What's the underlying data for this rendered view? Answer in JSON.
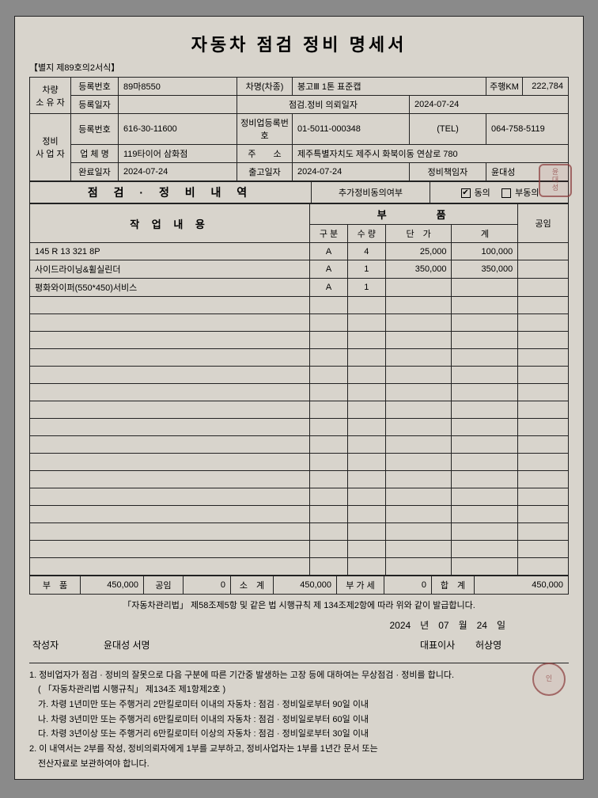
{
  "title": "자동차 점검 정비 명세서",
  "formNo": "【별지 제89호의2서식】",
  "owner": {
    "group": "차량\n소 유 자",
    "regNoLabel": "등록번호",
    "regNo": "89마8550",
    "regDateLabel": "등록일자",
    "regDate": "",
    "carModelLabel": "차명(차종)",
    "carModel": "봉고Ⅲ 1톤 표준캡",
    "mileageLabel": "주행KM",
    "mileage": "222,784",
    "reqDateLabel": "점검.정비 의뢰일자",
    "reqDate": "2024-07-24"
  },
  "shop": {
    "group": "정비\n사 업 자",
    "regNoLabel": "등록번호",
    "regNo": "616-30-11600",
    "bizRegLabel": "정비업등록번호",
    "bizReg": "01-5011-000348",
    "telLabel": "(TEL)",
    "tel": "064-758-5119",
    "nameLabel": "업 체 명",
    "name": "119타이어 삼화점",
    "addrLabel": "주　　소",
    "addr": "제주특별자치도 제주시 화북이동 연삼로 780",
    "doneDateLabel": "완료일자",
    "doneDate": "2024-07-24",
    "outDateLabel": "출고일자",
    "outDate": "2024-07-24",
    "mgrLabel": "정비책임자",
    "mgr": "윤대성"
  },
  "section": {
    "inspect": "점 검 · 정 비 내 역",
    "extraLabel": "추가정비동의여부",
    "agree": "동의",
    "disagree": "부동의",
    "agreeChecked": "✔",
    "work": "작 업 내 용",
    "parts": "부　　　품",
    "labor": "공임",
    "col_div": "구 분",
    "col_qty": "수 량",
    "col_price": "단　가",
    "col_sum": "계"
  },
  "rows": [
    {
      "work": "145 R 13 321 8P",
      "div": "A",
      "qty": "4",
      "price": "25,000",
      "sum": "100,000",
      "labor": ""
    },
    {
      "work": "사이드라이닝&휠실린더",
      "div": "A",
      "qty": "1",
      "price": "350,000",
      "sum": "350,000",
      "labor": ""
    },
    {
      "work": "평화와이퍼(550*450)서비스",
      "div": "A",
      "qty": "1",
      "price": "",
      "sum": "",
      "labor": ""
    }
  ],
  "blankRows": 16,
  "totals": {
    "partsLabel": "부　품",
    "parts": "450,000",
    "laborLabel": "공임",
    "labor": "0",
    "subLabel": "소　계",
    "sub": "450,000",
    "vatLabel": "부 가 세",
    "vat": "0",
    "totalLabel": "합　계",
    "total": "450,000"
  },
  "law": "「자동차관리법」 제58조제5항 및 같은 법 시행규칙 제 134조제2항에 따라 위와 같이 발급합니다.",
  "date": "2024　년　07　월　24　일",
  "writerLabel": "작성자",
  "writer": "윤대성  서명",
  "ceoLabel": "대표이사",
  "ceo": "허상영",
  "notes": [
    "1. 정비업자가 점검 · 정비의 잘못으로 다음 구분에 따른 기간중 발생하는 고장 등에 대하여는 무상점검 · 정비를 합니다.",
    "　( 「자동차관리법 시행규칙」 제134조 제1항제2호 )",
    "　가. 차령 1년미만 또는 주행거리 2만킬로미터 이내의 자동차 : 점검 · 정비일로부터 90일 이내",
    "　나. 차령 3년미만 또는 주행거리 6만킬로미터 이내의 자동차 : 점검 · 정비일로부터 60일 이내",
    "　다. 차령 3년이상 또는 주행거리 6만킬로미터 이상의 자동차 : 점검 · 정비일로부터 30일 이내",
    "2. 이 내역서는 2부를 작성, 정비의뢰자에게 1부를 교부하고, 정비사업자는 1부를 1년간 문서 또는",
    "　전산자료로 보관하여야 합니다."
  ]
}
